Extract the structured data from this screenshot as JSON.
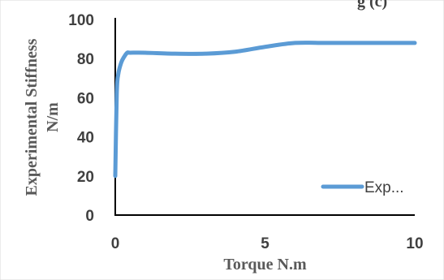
{
  "header_fragment": "g (c)",
  "chart_data": {
    "type": "line",
    "xlabel": "Torque N.m",
    "ylabel_line1": "Experimental Stiffness",
    "ylabel_line2": "N/m",
    "xlim": [
      0,
      10
    ],
    "ylim": [
      0,
      100
    ],
    "x_ticks": [
      "0",
      "5",
      "10"
    ],
    "y_ticks": [
      "0",
      "20",
      "40",
      "60",
      "80",
      "100"
    ],
    "grid": false,
    "legend_position": "bottom-right",
    "series": [
      {
        "name": "Exp...",
        "color": "#5b9bd5",
        "x": [
          0,
          0.05,
          0.1,
          0.2,
          0.3,
          0.4,
          0.5,
          1,
          2,
          3,
          4,
          5,
          6,
          7,
          8,
          9,
          10
        ],
        "y": [
          20,
          62,
          72,
          78,
          81,
          83,
          83,
          83,
          82.5,
          82.5,
          83.5,
          86,
          88,
          88,
          88,
          88,
          88
        ]
      }
    ]
  }
}
